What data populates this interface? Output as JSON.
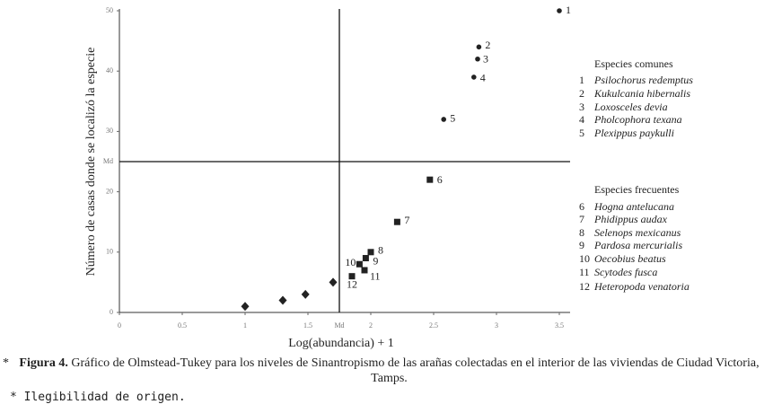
{
  "chart_data": {
    "type": "scatter",
    "x_label": "Log(abundancia) + 1",
    "y_label": "Número de casas donde se localizó la especie",
    "xlim": [
      0,
      3.5
    ],
    "ylim": [
      0,
      50
    ],
    "xticks": [
      0,
      0.5,
      1,
      1.5,
      2,
      2.5,
      3,
      3.5
    ],
    "yticks": [
      0,
      10,
      20,
      30,
      40,
      50
    ],
    "median_x": 1.75,
    "median_y": 25,
    "median_label": "Md",
    "series": [
      {
        "marker": "circle",
        "color": "#222222",
        "x": [
          3.5,
          2.86,
          2.85,
          2.82,
          2.58
        ],
        "values": [
          50,
          44,
          42,
          39,
          32
        ],
        "labels": [
          "1",
          "2",
          "3",
          "4",
          "5"
        ]
      },
      {
        "marker": "square",
        "color": "#222222",
        "x": [
          2.47,
          2.21,
          2.0,
          1.96,
          1.91,
          1.95,
          1.85
        ],
        "values": [
          22,
          15,
          10,
          9,
          8,
          7,
          6
        ],
        "labels": [
          "6",
          "7",
          "8",
          "9",
          "10",
          "11",
          "12"
        ]
      },
      {
        "marker": "diamond",
        "color": "#222222",
        "x": [
          1.0,
          1.3,
          1.48,
          1.7
        ],
        "values": [
          1,
          2,
          3,
          5
        ]
      }
    ],
    "legend_groups": [
      {
        "title": "Especies comunes",
        "items": [
          {
            "number": "1",
            "name": "Psilochorus redemptus"
          },
          {
            "number": "2",
            "name": "Kukulcania hibernalis"
          },
          {
            "number": "3",
            "name": "Loxosceles devia"
          },
          {
            "number": "4",
            "name": "Pholcophora texana"
          },
          {
            "number": "5",
            "name": "Plexippus paykulli"
          }
        ]
      },
      {
        "title": "Especies frecuentes",
        "items": [
          {
            "number": "6",
            "name": "Hogna antelucana"
          },
          {
            "number": "7",
            "name": "Phidippus audax"
          },
          {
            "number": "8",
            "name": "Selenops mexicanus"
          },
          {
            "number": "9",
            "name": "Pardosa mercurialis"
          },
          {
            "number": "10",
            "name": "Oecobius beatus"
          },
          {
            "number": "11",
            "name": "Scytodes fusca"
          },
          {
            "number": "12",
            "name": "Heteropoda venatoria"
          }
        ]
      }
    ]
  },
  "caption": {
    "marker": "*",
    "label": "Figura 4.",
    "text": "Gráfico de Olmstead-Tukey para los niveles de Sinantropismo de las arañas colectadas en el interior de las viviendas de Ciudad Victoria, Tamps."
  },
  "footnote": "* Ilegibilidad de origen."
}
